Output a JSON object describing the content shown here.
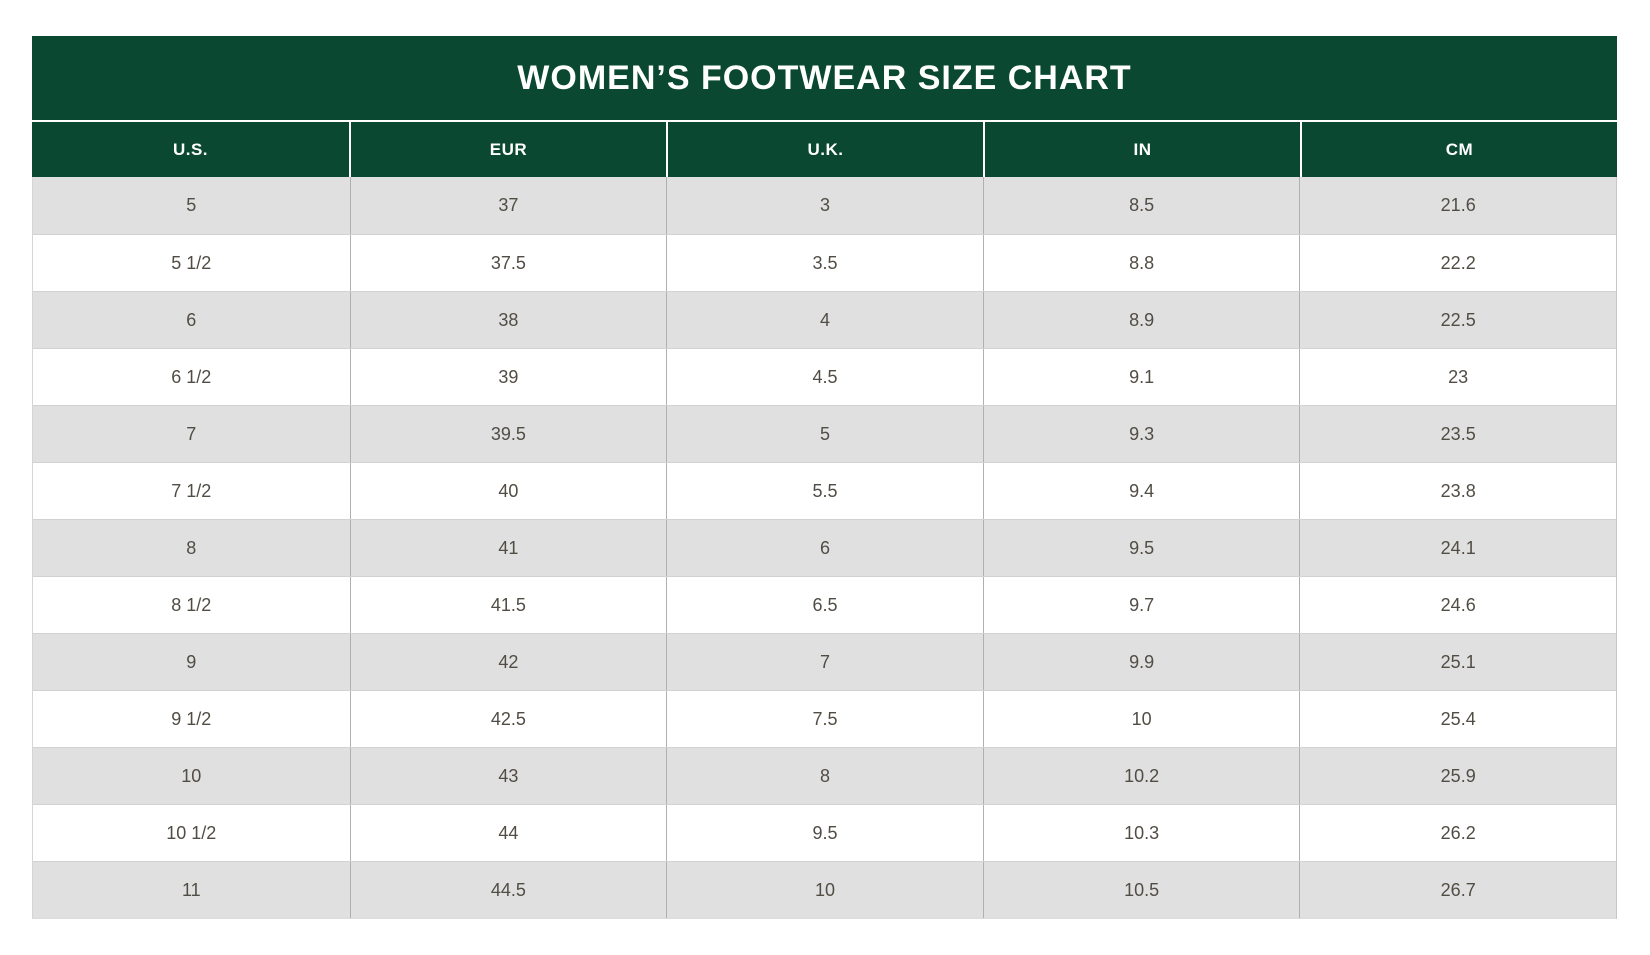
{
  "chart": {
    "title": "WOMEN’S FOOTWEAR SIZE CHART"
  },
  "table": {
    "columns": [
      "U.S.",
      "EUR",
      "U.K.",
      "IN",
      "CM"
    ],
    "rows": [
      [
        "5",
        "37",
        "3",
        "8.5",
        "21.6"
      ],
      [
        "5 1/2",
        "37.5",
        "3.5",
        "8.8",
        "22.2"
      ],
      [
        "6",
        "38",
        "4",
        "8.9",
        "22.5"
      ],
      [
        "6 1/2",
        "39",
        "4.5",
        "9.1",
        "23"
      ],
      [
        "7",
        "39.5",
        "5",
        "9.3",
        "23.5"
      ],
      [
        "7 1/2",
        "40",
        "5.5",
        "9.4",
        "23.8"
      ],
      [
        "8",
        "41",
        "6",
        "9.5",
        "24.1"
      ],
      [
        "8 1/2",
        "41.5",
        "6.5",
        "9.7",
        "24.6"
      ],
      [
        "9",
        "42",
        "7",
        "9.9",
        "25.1"
      ],
      [
        "9 1/2",
        "42.5",
        "7.5",
        "10",
        "25.4"
      ],
      [
        "10",
        "43",
        "8",
        "10.2",
        "25.9"
      ],
      [
        "10 1/2",
        "44",
        "9.5",
        "10.3",
        "26.2"
      ],
      [
        "11",
        "44.5",
        "10",
        "10.5",
        "26.7"
      ]
    ]
  },
  "colors": {
    "header_green": "#0a4832",
    "alt_row_gray": "#e0e0e0",
    "body_text": "#514d45",
    "header_text": "#ffffff"
  },
  "chart_data": {
    "type": "table",
    "title": "WOMEN’S FOOTWEAR SIZE CHART",
    "columns": [
      "U.S.",
      "EUR",
      "U.K.",
      "IN",
      "CM"
    ],
    "rows": [
      [
        "5",
        "37",
        "3",
        "8.5",
        "21.6"
      ],
      [
        "5 1/2",
        "37.5",
        "3.5",
        "8.8",
        "22.2"
      ],
      [
        "6",
        "38",
        "4",
        "8.9",
        "22.5"
      ],
      [
        "6 1/2",
        "39",
        "4.5",
        "9.1",
        "23"
      ],
      [
        "7",
        "39.5",
        "5",
        "9.3",
        "23.5"
      ],
      [
        "7 1/2",
        "40",
        "5.5",
        "9.4",
        "23.8"
      ],
      [
        "8",
        "41",
        "6",
        "9.5",
        "24.1"
      ],
      [
        "8 1/2",
        "41.5",
        "6.5",
        "9.7",
        "24.6"
      ],
      [
        "9",
        "42",
        "7",
        "9.9",
        "25.1"
      ],
      [
        "9 1/2",
        "42.5",
        "7.5",
        "10",
        "25.4"
      ],
      [
        "10",
        "43",
        "8",
        "10.2",
        "25.9"
      ],
      [
        "10 1/2",
        "44",
        "9.5",
        "10.3",
        "26.2"
      ],
      [
        "11",
        "44.5",
        "10",
        "10.5",
        "26.7"
      ]
    ],
    "layout": {
      "striped_rows": true,
      "first_body_row_shaded": true,
      "header_background": "#0a4832"
    }
  }
}
